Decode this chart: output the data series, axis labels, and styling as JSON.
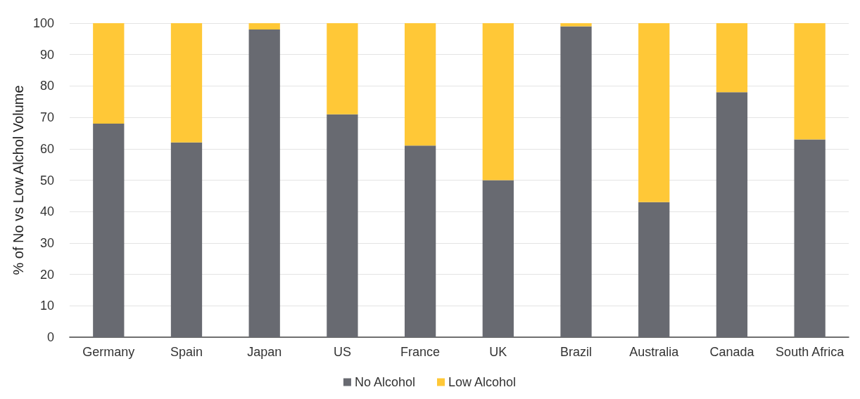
{
  "chart_data": {
    "type": "bar",
    "ylabel": "% of No vs Low Alchol Volume",
    "categories": [
      "Germany",
      "Spain",
      "Japan",
      "US",
      "France",
      "UK",
      "Brazil",
      "Australia",
      "Canada",
      "South Africa"
    ],
    "series": [
      {
        "name": "No Alcohol",
        "color": "#686a71",
        "values": [
          68,
          62,
          98,
          71,
          61,
          50,
          99,
          43,
          78,
          63
        ]
      },
      {
        "name": "Low Alcohol",
        "color": "#ffc837",
        "values": [
          32,
          38,
          2,
          29,
          39,
          50,
          1,
          57,
          22,
          37
        ]
      }
    ],
    "stacked": true,
    "ylim": [
      0,
      100
    ],
    "yticks": [
      0,
      10,
      20,
      30,
      40,
      50,
      60,
      70,
      80,
      90,
      100
    ],
    "grid": "y",
    "legend": "bottom"
  }
}
